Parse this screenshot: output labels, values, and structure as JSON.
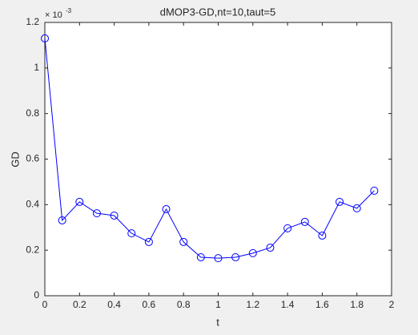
{
  "chart_data": {
    "type": "line",
    "title": "dMOP3-GD,nt=10,taut=5",
    "xlabel": "t",
    "ylabel": "GD",
    "y_exponent_base": "× 10",
    "y_exponent": "-3",
    "x": [
      0,
      0.1,
      0.2,
      0.3,
      0.4,
      0.5,
      0.6,
      0.7,
      0.8,
      0.9,
      1.0,
      1.1,
      1.2,
      1.3,
      1.4,
      1.5,
      1.6,
      1.7,
      1.8,
      1.9
    ],
    "series": [
      {
        "color": "#0000ff",
        "values": [
          1.13,
          0.331,
          0.412,
          0.362,
          0.352,
          0.274,
          0.236,
          0.38,
          0.236,
          0.169,
          0.165,
          0.169,
          0.187,
          0.211,
          0.296,
          0.324,
          0.264,
          0.412,
          0.384,
          0.461
        ]
      }
    ],
    "xlim": [
      0,
      2
    ],
    "xticks": [
      0,
      0.2,
      0.4,
      0.6,
      0.8,
      1,
      1.2,
      1.4,
      1.6,
      1.8,
      2
    ],
    "ylim": [
      0,
      1.2
    ],
    "yticks": [
      0,
      0.2,
      0.4,
      0.6,
      0.8,
      1,
      1.2
    ],
    "marker": "circle"
  }
}
